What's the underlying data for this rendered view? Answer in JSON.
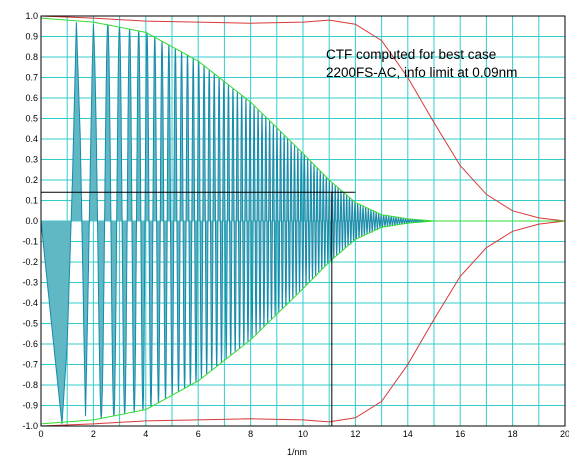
{
  "chart_data": {
    "type": "line",
    "title": "",
    "xlabel": "1/nm",
    "ylabel": "",
    "xlim": [
      0,
      20
    ],
    "ylim": [
      -1.0,
      1.0
    ],
    "grid": true,
    "x_ticks": [
      "0",
      "2",
      "4",
      "6",
      "8",
      "10",
      "12",
      "14",
      "16",
      "18",
      "20"
    ],
    "y_ticks": [
      "1.0",
      "0.9",
      "0.8",
      "0.7",
      "0.6",
      "0.5",
      "0.4",
      "0.3",
      "0.2",
      "0.1",
      "0.0",
      "-0.1",
      "-0.2",
      "-0.3",
      "-0.4",
      "-0.5",
      "-0.6",
      "-0.7",
      "-0.8",
      "-0.9",
      "-1.0"
    ],
    "annotation_lines": [
      "CTF computed for best case",
      "2200FS-AC, info limit at 0.09nm"
    ],
    "info_limit_marker": {
      "x": 11.1,
      "y": 0.14
    },
    "colors": {
      "ctf": "#1a8aa8",
      "ctf_fill": "#5fb8c4",
      "envelope": "#33dd33",
      "outer_envelope": "#d83838",
      "grid": "#33cccc",
      "marker": "#000000"
    },
    "series": [
      {
        "role": "ctf",
        "x": [
          0.0,
          0.4,
          0.8,
          1.0,
          1.2,
          1.35,
          1.5,
          1.7,
          1.85,
          2.0,
          2.3,
          2.6,
          3.0,
          3.5,
          4.0,
          5.0,
          6.0,
          7.0,
          8.0,
          9.0,
          10.0,
          10.5,
          11.0,
          11.5,
          12.0,
          12.5,
          13.0,
          14.0,
          15.0,
          20.0
        ],
        "y": [
          0.0,
          -0.5,
          -0.99,
          -0.6,
          0.2,
          0.97,
          0.4,
          -0.95,
          0.1,
          0.96,
          -0.97,
          0.95,
          -0.96,
          0.93,
          -0.95,
          0.88,
          -0.86,
          0.72,
          -0.66,
          0.5,
          -0.3,
          0.25,
          0.18,
          0.12,
          0.07,
          0.04,
          0.02,
          0.005,
          0.0,
          0.0
        ]
      },
      {
        "role": "envelope",
        "x": [
          0,
          2,
          4,
          6,
          8,
          10,
          11,
          12,
          13,
          14,
          15,
          20
        ],
        "y_upper": [
          0.99,
          0.97,
          0.92,
          0.78,
          0.58,
          0.33,
          0.2,
          0.09,
          0.03,
          0.01,
          0.0,
          0.0
        ]
      },
      {
        "role": "outer_envelope",
        "x": [
          0,
          2,
          4,
          6,
          8,
          10,
          11,
          12,
          13,
          14,
          15,
          16,
          17,
          18,
          19,
          20
        ],
        "y_upper": [
          1.0,
          0.99,
          0.975,
          0.97,
          0.965,
          0.97,
          0.98,
          0.96,
          0.88,
          0.7,
          0.48,
          0.27,
          0.13,
          0.05,
          0.015,
          0.0
        ]
      }
    ]
  }
}
